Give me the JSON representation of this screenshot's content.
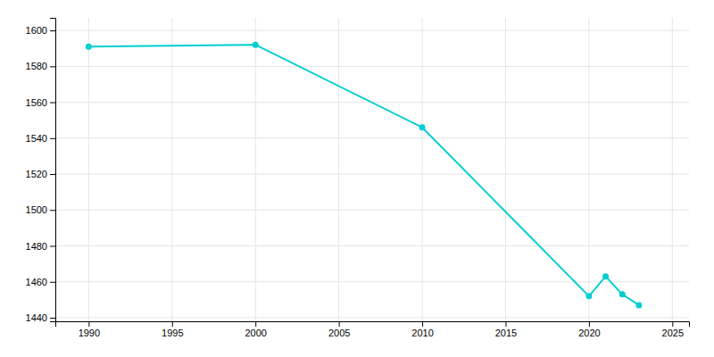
{
  "chart_data": {
    "type": "line",
    "x": [
      1990,
      2000,
      2010,
      2020,
      2021,
      2022,
      2023
    ],
    "values": [
      1591,
      1592,
      1546,
      1452,
      1463,
      1453,
      1447
    ],
    "color": "#00CED1",
    "marker": "circle",
    "xlim": [
      1988,
      2026
    ],
    "ylim": [
      1438,
      1607
    ],
    "xticks": [
      1990,
      1995,
      2000,
      2005,
      2010,
      2015,
      2020,
      2025
    ],
    "yticks": [
      1440,
      1460,
      1480,
      1500,
      1520,
      1540,
      1560,
      1580,
      1600
    ],
    "grid": true
  }
}
